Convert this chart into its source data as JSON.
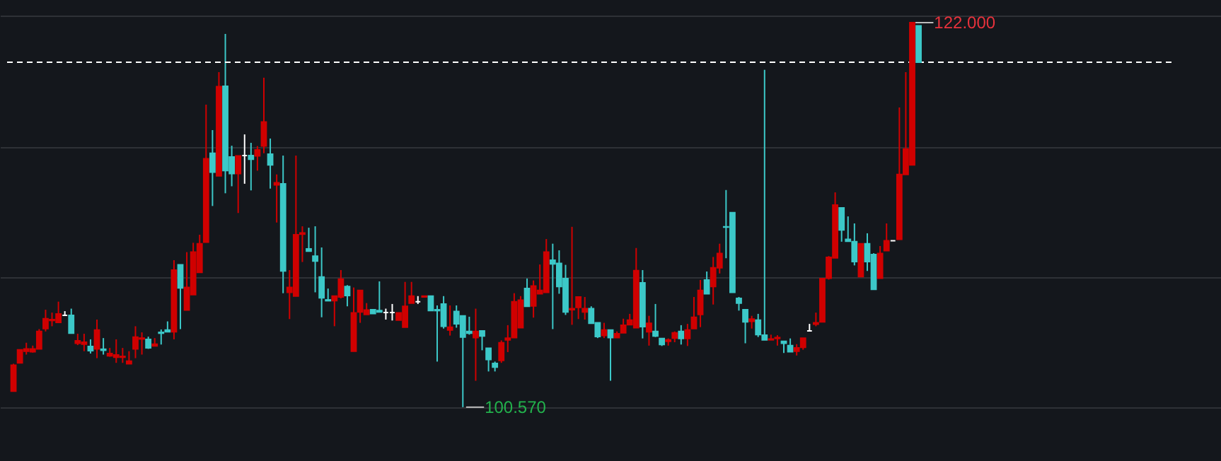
{
  "chart_data": {
    "type": "candlestick",
    "categories": [
      null,
      null,
      null,
      null,
      null,
      null,
      null,
      null,
      null,
      null,
      null,
      null,
      null,
      null,
      null,
      null,
      null,
      null,
      null,
      null,
      null,
      null,
      null,
      null,
      null,
      null,
      null,
      null,
      null,
      null,
      null,
      null,
      null,
      null,
      null,
      null,
      null,
      null,
      null,
      null,
      null,
      null,
      null,
      null,
      null,
      null,
      null,
      null,
      null,
      null,
      null,
      null,
      null,
      null,
      null,
      null,
      null,
      null,
      null,
      null,
      null,
      null,
      null,
      null,
      null,
      null,
      null,
      null,
      null,
      null,
      null,
      null,
      null,
      null,
      null,
      null,
      null,
      null,
      null,
      null,
      null,
      null,
      null,
      null,
      null,
      null,
      null,
      null,
      null,
      null,
      null,
      null,
      null,
      null,
      null,
      null,
      null,
      null,
      null,
      null,
      null,
      null,
      null,
      null,
      null,
      null,
      null,
      null,
      null,
      null,
      null,
      null,
      null,
      null,
      null,
      null,
      null,
      null,
      null,
      null,
      null,
      null,
      null,
      null,
      null,
      null,
      null,
      null,
      null,
      null,
      null,
      null,
      null,
      null,
      null,
      null,
      null,
      null,
      null,
      null,
      null,
      null
    ],
    "ohlc": [
      [
        101.46,
        102.99,
        101.46,
        102.91
      ],
      [
        103.04,
        103.77,
        103.04,
        103.77
      ],
      [
        103.69,
        104.16,
        103.5,
        103.82
      ],
      [
        103.66,
        104.0,
        103.61,
        103.82
      ],
      [
        103.82,
        104.92,
        103.82,
        104.79
      ],
      [
        104.95,
        106.0,
        104.79,
        105.5
      ],
      [
        105.4,
        105.84,
        105.08,
        105.45
      ],
      [
        105.29,
        106.45,
        105.29,
        105.77
      ],
      [
        105.69,
        105.92,
        105.66,
        105.69
      ],
      [
        105.69,
        106.06,
        104.69,
        104.69
      ],
      [
        104.13,
        104.66,
        104.03,
        104.27
      ],
      [
        104.08,
        104.66,
        103.69,
        104.19
      ],
      [
        103.95,
        104.35,
        103.56,
        103.72
      ],
      [
        103.82,
        105.45,
        103.3,
        104.87
      ],
      [
        103.8,
        104.42,
        103.5,
        103.74
      ],
      [
        103.43,
        103.87,
        103.38,
        103.56
      ],
      [
        103.35,
        104.35,
        103.04,
        103.48
      ],
      [
        103.35,
        103.87,
        103.04,
        103.4
      ],
      [
        102.99,
        103.69,
        102.99,
        103.14
      ],
      [
        103.82,
        105.08,
        103.3,
        104.48
      ],
      [
        104.37,
        104.74,
        103.5,
        104.42
      ],
      [
        104.35,
        104.5,
        103.82,
        103.87
      ],
      [
        103.98,
        104.42,
        103.98,
        104.08
      ],
      [
        104.74,
        104.9,
        104.06,
        104.69
      ],
      [
        104.87,
        105.35,
        104.77,
        104.77
      ],
      [
        104.77,
        108.76,
        104.35,
        108.21
      ],
      [
        108.5,
        108.5,
        104.92,
        107.21
      ],
      [
        105.98,
        109.21,
        105.98,
        107.24
      ],
      [
        106.84,
        109.73,
        106.84,
        109.21
      ],
      [
        108.08,
        110.18,
        108.08,
        109.68
      ],
      [
        109.76,
        117.43,
        109.76,
        114.41
      ],
      [
        114.72,
        116.01,
        111.78,
        113.67
      ],
      [
        113.46,
        119.24,
        113.46,
        118.43
      ],
      [
        118.45,
        121.37,
        112.49,
        113.75
      ],
      [
        114.51,
        115.14,
        112.88,
        113.59
      ],
      [
        113.59,
        114.57,
        111.39,
        114.57
      ],
      [
        114.59,
        115.77,
        113.02,
        114.59
      ],
      [
        114.59,
        115.3,
        112.65,
        114.38
      ],
      [
        114.57,
        115.12,
        113.75,
        114.91
      ],
      [
        115.12,
        118.93,
        114.72,
        116.46
      ],
      [
        114.67,
        115.54,
        112.75,
        114.07
      ],
      [
        112.96,
        113.54,
        110.86,
        113.07
      ],
      [
        113.02,
        114.59,
        106.92,
        108.16
      ],
      [
        106.97,
        108.21,
        105.48,
        107.24
      ],
      [
        106.76,
        114.59,
        106.76,
        110.18
      ],
      [
        110.21,
        110.65,
        108.66,
        110.28
      ],
      [
        109.39,
        110.57,
        109.26,
        109.26
      ],
      [
        108.99,
        110.65,
        106.97,
        108.71
      ],
      [
        107.82,
        109.47,
        105.58,
        106.66
      ],
      [
        106.55,
        107.18,
        106.5,
        106.5
      ],
      [
        106.5,
        106.76,
        105.08,
        106.76
      ],
      [
        106.71,
        108.21,
        106.63,
        107.71
      ],
      [
        107.29,
        107.37,
        106.19,
        106.79
      ],
      [
        103.69,
        107.24,
        103.69,
        105.82
      ],
      [
        105.87,
        107.08,
        105.27,
        107.08
      ],
      [
        105.74,
        106.37,
        105.74,
        105.98
      ],
      [
        106.0,
        106.0,
        105.79,
        105.79
      ],
      [
        105.95,
        107.58,
        105.87,
        105.87
      ],
      [
        105.84,
        106.06,
        105.45,
        105.84
      ],
      [
        105.84,
        106.32,
        105.4,
        105.84
      ],
      [
        105.42,
        105.82,
        105.42,
        105.82
      ],
      [
        105.03,
        107.55,
        105.03,
        106.19
      ],
      [
        106.37,
        107.55,
        106.37,
        106.76
      ],
      [
        106.45,
        106.76,
        106.32,
        106.45
      ],
      [
        106.71,
        106.76,
        106.71,
        106.76
      ],
      [
        106.76,
        106.76,
        105.95,
        105.95
      ],
      [
        106.0,
        106.24,
        103.11,
        105.95
      ],
      [
        106.32,
        106.76,
        104.95,
        105.08
      ],
      [
        104.87,
        106.24,
        104.56,
        105.03
      ],
      [
        105.9,
        106.24,
        105.0,
        105.21
      ],
      [
        105.66,
        105.66,
        100.57,
        104.48
      ],
      [
        104.79,
        105.61,
        104.61,
        104.69
      ],
      [
        104.45,
        106.06,
        102.04,
        104.79
      ],
      [
        104.82,
        104.82,
        103.74,
        104.53
      ],
      [
        103.85,
        103.85,
        102.56,
        103.22
      ],
      [
        103.01,
        103.11,
        102.56,
        102.8
      ],
      [
        103.17,
        104.29,
        103.04,
        104.16
      ],
      [
        104.32,
        105.14,
        103.64,
        104.42
      ],
      [
        104.45,
        106.92,
        104.45,
        106.45
      ],
      [
        105.0,
        106.76,
        105.0,
        106.53
      ],
      [
        107.18,
        107.74,
        106.19,
        106.19
      ],
      [
        106.21,
        107.63,
        105.56,
        107.32
      ],
      [
        106.89,
        108.52,
        106.89,
        107.08
      ],
      [
        106.97,
        109.94,
        106.97,
        109.21
      ],
      [
        108.76,
        109.68,
        104.92,
        108.55
      ],
      [
        108.58,
        109.31,
        106.89,
        107.29
      ],
      [
        107.74,
        108.5,
        105.71,
        105.87
      ],
      [
        106.0,
        110.62,
        105.16,
        106.06
      ],
      [
        106.13,
        106.71,
        105.48,
        106.71
      ],
      [
        105.87,
        106.71,
        105.45,
        106.06
      ],
      [
        106.06,
        106.19,
        105.24,
        105.24
      ],
      [
        105.27,
        105.27,
        104.42,
        104.5
      ],
      [
        104.56,
        105.27,
        104.42,
        104.87
      ],
      [
        104.87,
        104.87,
        102.04,
        104.45
      ],
      [
        104.45,
        104.79,
        104.45,
        104.66
      ],
      [
        104.71,
        105.5,
        104.71,
        105.14
      ],
      [
        105.16,
        105.77,
        105.16,
        105.42
      ],
      [
        105.0,
        109.44,
        105.0,
        108.18
      ],
      [
        107.5,
        108.21,
        104.4,
        105.06
      ],
      [
        104.77,
        105.66,
        104.0,
        105.24
      ],
      [
        104.79,
        106.32,
        104.48,
        104.53
      ],
      [
        104.4,
        104.4,
        103.98,
        104.06
      ],
      [
        104.24,
        104.4,
        104.0,
        104.32
      ],
      [
        104.42,
        104.79,
        104.19,
        104.71
      ],
      [
        104.79,
        105.14,
        104.06,
        104.4
      ],
      [
        104.4,
        105.21,
        103.98,
        104.87
      ],
      [
        104.95,
        106.71,
        104.95,
        105.58
      ],
      [
        105.74,
        107.66,
        105.03,
        107.08
      ],
      [
        107.66,
        108.13,
        106.89,
        106.89
      ],
      [
        107.29,
        108.94,
        106.29,
        108.34
      ],
      [
        108.34,
        109.68,
        108.02,
        109.13
      ],
      [
        110.62,
        112.67,
        108.87,
        110.6
      ],
      [
        111.41,
        111.41,
        106.97,
        106.97
      ],
      [
        106.63,
        106.71,
        105.95,
        106.37
      ],
      [
        106.0,
        106.0,
        104.13,
        105.32
      ],
      [
        105.35,
        105.66,
        104.95,
        105.48
      ],
      [
        105.42,
        105.77,
        104.48,
        104.61
      ],
      [
        104.58,
        119.37,
        104.32,
        104.32
      ],
      [
        104.32,
        104.61,
        104.32,
        104.37
      ],
      [
        104.4,
        104.58,
        104.0,
        104.45
      ],
      [
        104.24,
        104.24,
        103.59,
        104.13
      ],
      [
        104.0,
        104.4,
        103.66,
        103.66
      ],
      [
        103.69,
        104.08,
        103.45,
        103.87
      ],
      [
        103.9,
        104.42,
        103.77,
        104.42
      ],
      [
        104.82,
        105.21,
        104.82,
        104.82
      ],
      [
        105.19,
        105.84,
        105.08,
        105.27
      ],
      [
        105.32,
        107.74,
        105.32,
        107.74
      ],
      [
        107.76,
        108.99,
        107.68,
        108.92
      ],
      [
        108.89,
        112.54,
        108.89,
        111.83
      ],
      [
        111.68,
        111.68,
        109.79,
        110.44
      ],
      [
        109.92,
        111.2,
        109.81,
        109.81
      ],
      [
        109.79,
        110.81,
        108.47,
        108.68
      ],
      [
        107.84,
        109.68,
        107.84,
        109.68
      ],
      [
        109.68,
        110.26,
        108.16,
        108.68
      ],
      [
        109.08,
        109.15,
        107.13,
        107.13
      ],
      [
        107.76,
        109.55,
        107.76,
        109.13
      ],
      [
        109.29,
        110.81,
        109.29,
        109.84
      ],
      [
        109.84,
        109.84,
        109.84,
        109.84
      ],
      [
        109.92,
        117.27,
        109.92,
        113.54
      ],
      [
        113.54,
        119.24,
        113.54,
        114.96
      ],
      [
        114.07,
        122.0,
        114.07,
        122.0
      ],
      [
        121.82,
        121.82,
        119.79,
        119.79
      ]
    ],
    "colors": [
      "#d00000",
      "#d00000",
      "#d00000",
      "#d00000",
      "#d00000",
      "#d00000",
      "#d00000",
      "#d00000",
      "#ffffff",
      "#3cc8c8",
      "#d00000",
      "#d00000",
      "#3cc8c8",
      "#d00000",
      "#3cc8c8",
      "#d00000",
      "#d00000",
      "#d00000",
      "#d00000",
      "#d00000",
      "#d00000",
      "#3cc8c8",
      "#d00000",
      "#3cc8c8",
      "#3cc8c8",
      "#d00000",
      "#3cc8c8",
      "#d00000",
      "#d00000",
      "#d00000",
      "#d00000",
      "#3cc8c8",
      "#d00000",
      "#3cc8c8",
      "#3cc8c8",
      "#d00000",
      "#ffffff",
      "#3cc8c8",
      "#d00000",
      "#d00000",
      "#3cc8c8",
      "#d00000",
      "#3cc8c8",
      "#d00000",
      "#d00000",
      "#d00000",
      "#3cc8c8",
      "#3cc8c8",
      "#3cc8c8",
      "#3cc8c8",
      "#d00000",
      "#d00000",
      "#3cc8c8",
      "#d00000",
      "#d00000",
      "#d00000",
      "#3cc8c8",
      "#3cc8c8",
      "#ffffff",
      "#ffffff",
      "#d00000",
      "#d00000",
      "#d00000",
      "#ffffff",
      "#d00000",
      "#3cc8c8",
      "#3cc8c8",
      "#3cc8c8",
      "#d00000",
      "#3cc8c8",
      "#3cc8c8",
      "#3cc8c8",
      "#d00000",
      "#3cc8c8",
      "#3cc8c8",
      "#3cc8c8",
      "#d00000",
      "#d00000",
      "#d00000",
      "#d00000",
      "#3cc8c8",
      "#d00000",
      "#d00000",
      "#d00000",
      "#3cc8c8",
      "#3cc8c8",
      "#3cc8c8",
      "#d00000",
      "#d00000",
      "#d00000",
      "#3cc8c8",
      "#3cc8c8",
      "#d00000",
      "#3cc8c8",
      "#d00000",
      "#d00000",
      "#d00000",
      "#d00000",
      "#3cc8c8",
      "#d00000",
      "#3cc8c8",
      "#3cc8c8",
      "#d00000",
      "#d00000",
      "#3cc8c8",
      "#d00000",
      "#d00000",
      "#d00000",
      "#3cc8c8",
      "#d00000",
      "#d00000",
      "#3cc8c8",
      "#3cc8c8",
      "#3cc8c8",
      "#3cc8c8",
      "#d00000",
      "#3cc8c8",
      "#3cc8c8",
      "#d00000",
      "#d00000",
      "#3cc8c8",
      "#3cc8c8",
      "#d00000",
      "#d00000",
      "#ffffff",
      "#d00000",
      "#d00000",
      "#d00000",
      "#d00000",
      "#3cc8c8",
      "#3cc8c8",
      "#3cc8c8",
      "#d00000",
      "#3cc8c8",
      "#3cc8c8",
      "#d00000",
      "#d00000",
      "#ffffff",
      "#d00000",
      "#d00000",
      "#d00000",
      "#3cc8c8"
    ],
    "ylim": [
      97.57,
      123.26
    ],
    "yticks": [
      {
        "value": 100.57,
        "label": null
      },
      {
        "value": 107.82,
        "label": null
      },
      {
        "value": 115.07,
        "label": null
      },
      {
        "value": 122.39,
        "label": null
      }
    ],
    "grid": "y",
    "ref_lines": [
      {
        "axis": "y",
        "value": 119.79,
        "color": "#ffffff",
        "line_style": "dashed"
      }
    ],
    "annotations": [
      "122.000",
      "100.570"
    ]
  }
}
